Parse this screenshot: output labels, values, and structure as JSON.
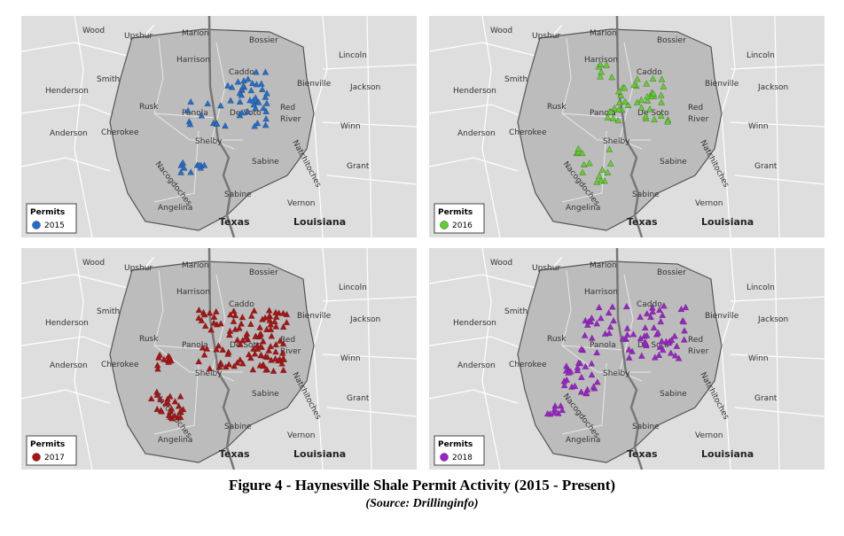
{
  "map_labels": [
    "Wood",
    "Upshur",
    "Marion",
    "Bossier",
    "Harrison",
    "Caddo",
    "Lincoln",
    "Henderson",
    "Smith",
    "Bienville",
    "Jackson",
    "Rusk",
    "Panola",
    "De Soto",
    "Red",
    "River",
    "Anderson",
    "Cherokee",
    "Winn",
    "Shelby",
    "Natchitoches",
    "Nacogdoches",
    "Sabine",
    "Grant",
    "Sabine",
    "Vernon",
    "Angelina",
    "Texas",
    "Louisiana"
  ],
  "panels": [
    {
      "legend_title": "Permits",
      "year": "2015",
      "color": "#1f6fd1"
    },
    {
      "legend_title": "Permits",
      "year": "2016",
      "color": "#5fd12a"
    },
    {
      "legend_title": "Permits",
      "year": "2017",
      "color": "#b01010"
    },
    {
      "legend_title": "Permits",
      "year": "2018",
      "color": "#a020d0"
    }
  ],
  "caption": {
    "title": "Figure 4 - Haynesville Shale Permit Activity (2015 - Present)",
    "source": "(Source: Drillinginfo)"
  }
}
